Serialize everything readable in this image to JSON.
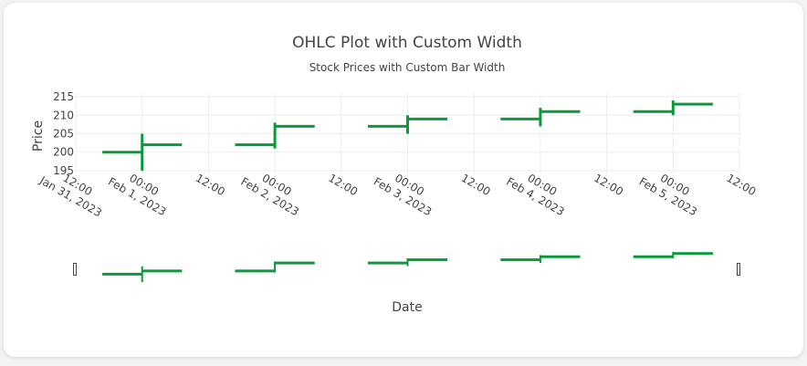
{
  "chart_data": {
    "type": "ohlc",
    "title": "OHLC Plot with Custom Width",
    "subtitle": "Stock Prices with Custom Bar Width",
    "xlabel": "Date",
    "ylabel": "Price",
    "ylim": [
      194,
      216
    ],
    "yticks": [
      195,
      200,
      205,
      210,
      215
    ],
    "xticks": [
      {
        "line1": "12:00",
        "line2": "Jan 31, 2023"
      },
      {
        "line1": "00:00",
        "line2": "Feb 1, 2023"
      },
      {
        "line1": "12:00",
        "line2": ""
      },
      {
        "line1": "00:00",
        "line2": "Feb 2, 2023"
      },
      {
        "line1": "12:00",
        "line2": ""
      },
      {
        "line1": "00:00",
        "line2": "Feb 3, 2023"
      },
      {
        "line1": "12:00",
        "line2": ""
      },
      {
        "line1": "00:00",
        "line2": "Feb 4, 2023"
      },
      {
        "line1": "12:00",
        "line2": ""
      },
      {
        "line1": "00:00",
        "line2": "Feb 5, 2023"
      },
      {
        "line1": "12:00",
        "line2": ""
      }
    ],
    "x": [
      "2023-02-01",
      "2023-02-02",
      "2023-02-03",
      "2023-02-04",
      "2023-02-05"
    ],
    "open": [
      200,
      202,
      207,
      209,
      211
    ],
    "high": [
      205,
      208,
      210,
      212,
      214
    ],
    "low": [
      195,
      201,
      205,
      207,
      210
    ],
    "close": [
      202,
      207,
      209,
      211,
      213
    ],
    "increasing_color": "#0a9a3a",
    "rangeslider": true,
    "grid": true
  }
}
